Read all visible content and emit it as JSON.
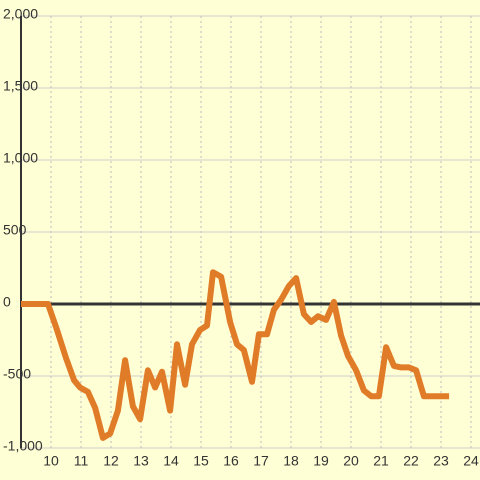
{
  "chart_data": {
    "type": "line",
    "color": "#e07b28",
    "grid": true,
    "x": [
      9,
      9.9,
      10.2,
      10.5,
      10.77,
      10.97,
      11.23,
      11.47,
      11.73,
      11.97,
      12.23,
      12.47,
      12.73,
      12.97,
      13.23,
      13.47,
      13.7,
      13.97,
      14.2,
      14.47,
      14.7,
      14.97,
      15.2,
      15.4,
      15.67,
      15.97,
      16.2,
      16.43,
      16.7,
      16.93,
      17.2,
      17.43,
      17.67,
      17.93,
      18.17,
      18.43,
      18.67,
      18.9,
      19.17,
      19.43,
      19.67,
      19.9,
      20.17,
      20.43,
      20.67,
      20.93,
      21.17,
      21.43,
      21.67,
      21.93,
      22.17,
      22.43,
      23.27
    ],
    "values": [
      0,
      0,
      -180,
      -375,
      -530,
      -580,
      -610,
      -720,
      -930,
      -900,
      -740,
      -390,
      -710,
      -800,
      -460,
      -580,
      -470,
      -740,
      -280,
      -560,
      -280,
      -180,
      -150,
      220,
      190,
      -125,
      -280,
      -320,
      -540,
      -210,
      -210,
      -40,
      30,
      125,
      180,
      -70,
      -125,
      -85,
      -110,
      15,
      -220,
      -360,
      -460,
      -600,
      -640,
      -640,
      -300,
      -430,
      -440,
      -440,
      -460,
      -640,
      -640
    ],
    "xlim": [
      9,
      24.3
    ],
    "ylim": [
      -1222,
      2111
    ],
    "xticks": [
      10,
      11,
      12,
      13,
      14,
      15,
      16,
      17,
      18,
      19,
      20,
      21,
      22,
      23,
      24
    ],
    "yticks": [
      {
        "value": 2000,
        "label": "2,000"
      },
      {
        "value": 1500,
        "label": "1,500"
      },
      {
        "value": 1000,
        "label": "1,000"
      },
      500,
      0,
      -500,
      {
        "value": -1000,
        "label": "-1,000"
      }
    ]
  }
}
